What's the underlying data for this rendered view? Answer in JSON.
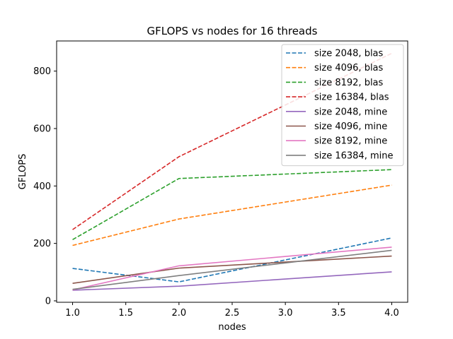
{
  "chart_data": {
    "type": "line",
    "title": "GFLOPS vs nodes for 16 threads",
    "xlabel": "nodes",
    "ylabel": "GFLOPS",
    "xlim": [
      0.85,
      4.15
    ],
    "ylim": [
      -5,
      905
    ],
    "xticks": [
      "1.0",
      "1.5",
      "2.0",
      "2.5",
      "3.0",
      "3.5",
      "4.0"
    ],
    "yticks": [
      "0",
      "200",
      "400",
      "600",
      "800"
    ],
    "grid": false,
    "legend_position": "top-right",
    "x": [
      1,
      2,
      4
    ],
    "series": [
      {
        "name": "size 2048, blas",
        "style": "dashed",
        "color": "#1f77b4",
        "values": [
          113,
          66,
          219
        ]
      },
      {
        "name": "size 4096, blas",
        "style": "dashed",
        "color": "#ff7f0e",
        "values": [
          193,
          285,
          403
        ]
      },
      {
        "name": "size 8192, blas",
        "style": "dashed",
        "color": "#2ca02c",
        "values": [
          213,
          426,
          457
        ]
      },
      {
        "name": "size 16384, blas",
        "style": "dashed",
        "color": "#d62728",
        "values": [
          248,
          502,
          862
        ]
      },
      {
        "name": "size 2048, mine",
        "style": "solid",
        "color": "#9467bd",
        "values": [
          37,
          51,
          101
        ]
      },
      {
        "name": "size 4096, mine",
        "style": "solid",
        "color": "#8c564b",
        "values": [
          61,
          114,
          156
        ]
      },
      {
        "name": "size 8192, mine",
        "style": "solid",
        "color": "#e377c2",
        "values": [
          38,
          122,
          187
        ]
      },
      {
        "name": "size 16384, mine",
        "style": "solid",
        "color": "#7f7f7f",
        "values": [
          40,
          88,
          176
        ]
      }
    ]
  }
}
